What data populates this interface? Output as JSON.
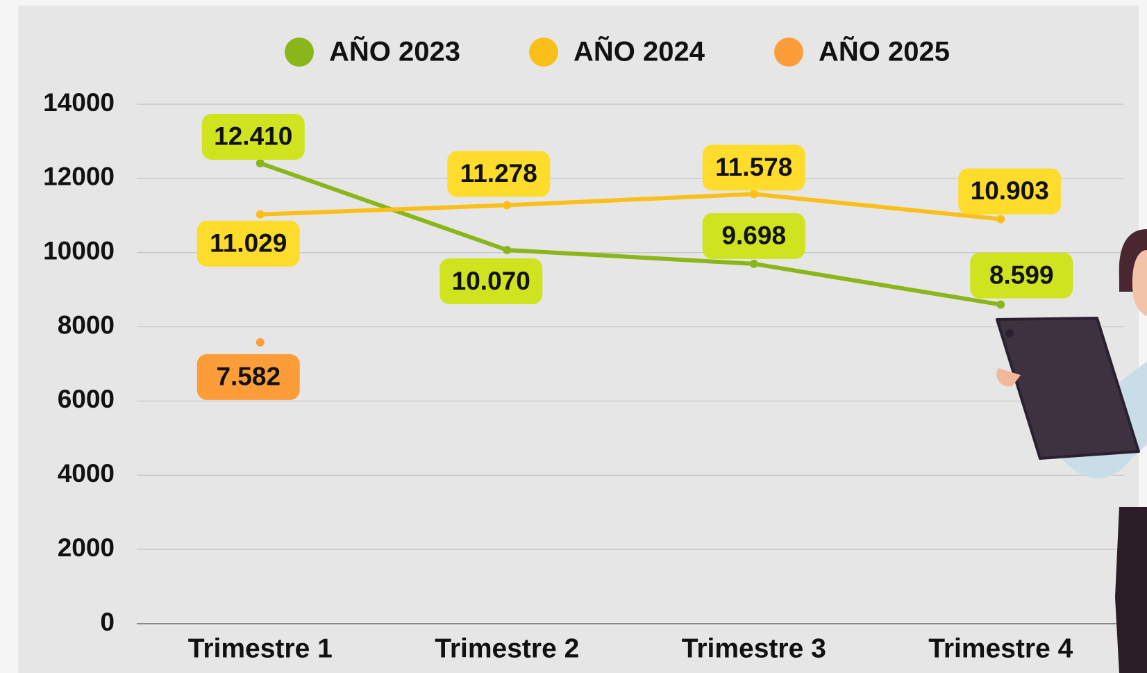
{
  "chart_data": {
    "type": "line",
    "categories": [
      "Trimestre 1",
      "Trimestre 2",
      "Trimestre 3",
      "Trimestre 4"
    ],
    "series": [
      {
        "name": "AÑO 2023",
        "color": "#8ab61a",
        "label_color": "#cfe31e",
        "values": [
          12410,
          10070,
          9698,
          8599
        ],
        "value_labels": [
          "12.410",
          "10.070",
          "9.698",
          "8.599"
        ]
      },
      {
        "name": "AÑO 2024",
        "color": "#fbbf1a",
        "label_color": "#fddc2c",
        "values": [
          11029,
          11278,
          11578,
          10903
        ],
        "value_labels": [
          "11.029",
          "11.278",
          "11.578",
          "10.903"
        ]
      },
      {
        "name": "AÑO 2025",
        "color": "#fd9d3a",
        "label_color": "#fd9d3a",
        "values": [
          7582,
          null,
          null,
          null
        ],
        "value_labels": [
          "7.582",
          null,
          null,
          null
        ]
      }
    ],
    "ylim": [
      0,
      14000
    ],
    "yticks": [
      0,
      2000,
      4000,
      6000,
      8000,
      10000,
      12000,
      14000
    ],
    "grid": true
  }
}
